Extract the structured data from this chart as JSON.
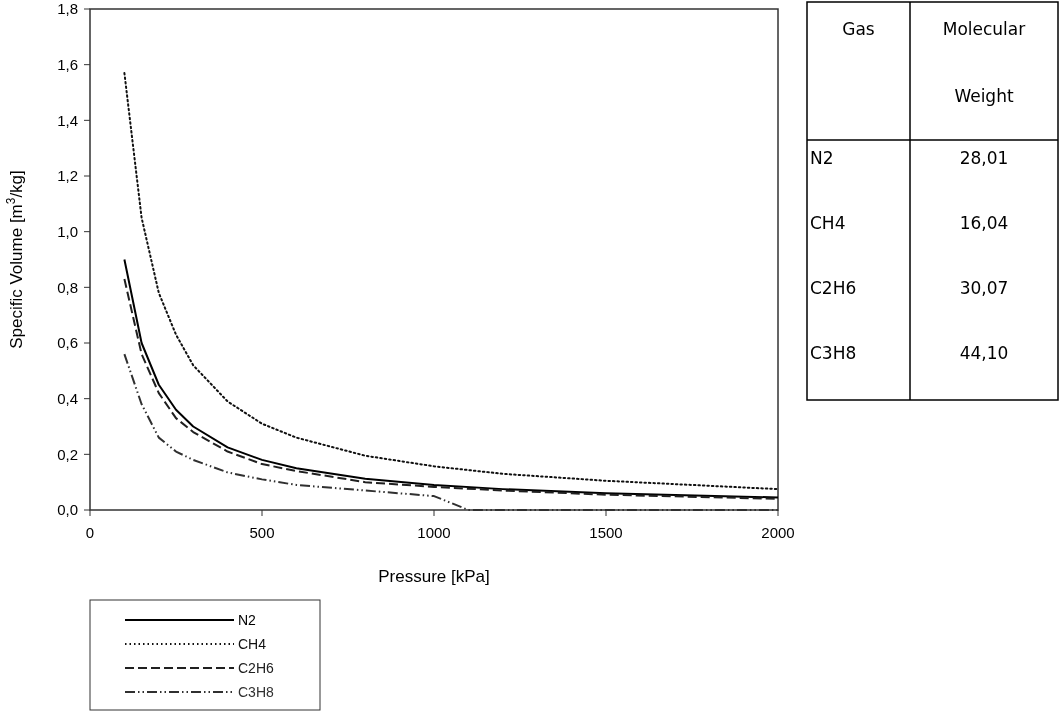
{
  "chart_data": [
    {
      "type": "line",
      "xlabel": "Pressure [kPa]",
      "ylabel": "Specific Volume [m$^{3}$/kg]",
      "xlim": [
        0,
        2000
      ],
      "ylim": [
        0,
        1.8
      ],
      "xticks": [
        0,
        500,
        1000,
        1500,
        2000
      ],
      "yticks": [
        {
          "value": 0,
          "label": "0,0"
        },
        {
          "value": 0.2,
          "label": "0,2"
        },
        {
          "value": 0.4,
          "label": "0,4"
        },
        {
          "value": 0.6,
          "label": "0,6"
        },
        {
          "value": 0.8,
          "label": "0,8"
        },
        {
          "value": 1,
          "label": "1,0"
        },
        {
          "value": 1.2,
          "label": "1,2"
        },
        {
          "value": 1.4,
          "label": "1,4"
        },
        {
          "value": 1.6,
          "label": "1,6"
        },
        {
          "value": 1.8,
          "label": "1,8"
        }
      ],
      "grid": false,
      "legend": "bottom left",
      "marker": "none",
      "x": [
        100,
        150,
        200,
        250,
        300,
        400,
        500,
        600,
        800,
        1000,
        1200,
        1500,
        2000
      ],
      "series": [
        {
          "name": "N2",
          "color": "#000000",
          "line_style": "solid",
          "values": [
            0.9,
            0.6,
            0.45,
            0.36,
            0.3,
            0.225,
            0.18,
            0.15,
            0.112,
            0.09,
            0.075,
            0.06,
            0.045
          ]
        },
        {
          "name": "CH4",
          "color": "#101010",
          "line_style": "dotted",
          "values": [
            1.57,
            1.05,
            0.78,
            0.63,
            0.52,
            0.39,
            0.31,
            0.26,
            0.195,
            0.157,
            0.13,
            0.105,
            0.075
          ]
        },
        {
          "name": "C2H6",
          "color": "#202020",
          "line_style": "dashed",
          "values": [
            0.83,
            0.56,
            0.42,
            0.33,
            0.28,
            0.21,
            0.165,
            0.14,
            0.1,
            0.083,
            0.07,
            0.055,
            0.04
          ]
        },
        {
          "name": "C3H8",
          "color": "#303030",
          "line_style": "dashdot",
          "x": [
            100,
            150,
            200,
            250,
            300,
            400,
            500,
            600,
            800,
            1000,
            1100,
            1500,
            2000
          ],
          "values": [
            0.56,
            0.38,
            0.26,
            0.21,
            0.18,
            0.135,
            0.11,
            0.09,
            0.07,
            0.05,
            0,
            0,
            0
          ]
        }
      ]
    },
    {
      "type": "other",
      "annotations": [
        "Gas",
        "Molecular Weight",
        "N2",
        "28,01",
        "CH4",
        "16,04",
        "C2H6",
        "30,07",
        "C3H8",
        "44,10"
      ]
    }
  ]
}
